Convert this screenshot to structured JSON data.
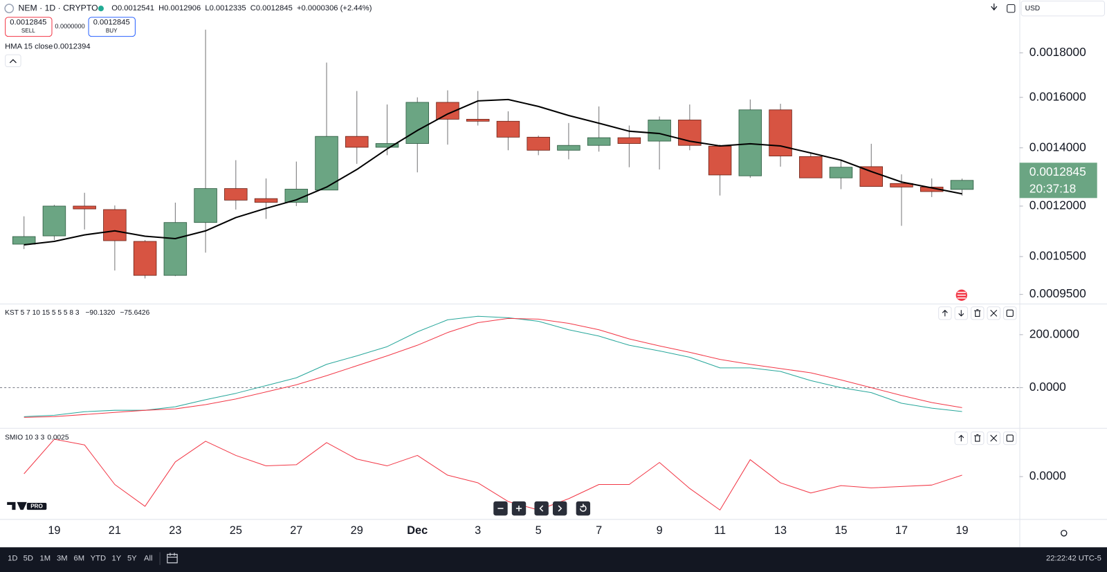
{
  "header": {
    "symbol": "NEM · 1D · CRYPTO",
    "ohlc": [
      "O0.0012541",
      "H0.0012906",
      "L0.0012335",
      "C0.0012845",
      "+0.0000306 (+2.44%)"
    ],
    "sell": {
      "price": "0.0012845",
      "label": "SELL"
    },
    "spread": "0.0000000",
    "buy": {
      "price": "0.0012845",
      "label": "BUY"
    },
    "currency": "USD",
    "badge": "PRO"
  },
  "toolbar": {
    "ranges": [
      "1D",
      "5D",
      "1M",
      "3M",
      "6M",
      "YTD",
      "1Y",
      "5Y",
      "All"
    ],
    "clock": "22:22:42 UTC-5"
  },
  "chart_data": [
    {
      "type": "candlestick",
      "log": true,
      "categories": [
        null,
        "19",
        null,
        "21",
        null,
        "23",
        null,
        "25",
        null,
        "27",
        null,
        "29",
        null,
        "Dec",
        null,
        "3",
        null,
        "5",
        null,
        "7",
        null,
        "9",
        null,
        "11",
        null,
        "13",
        null,
        "15",
        null,
        "17",
        null,
        "19"
      ],
      "open": [
        0.001085,
        0.001109,
        0.0012,
        0.001189,
        0.001093,
        0.000999,
        0.001149,
        0.001257,
        0.001224,
        0.001212,
        0.001252,
        0.001443,
        0.001402,
        0.001416,
        0.001579,
        0.00151,
        0.001502,
        0.00144,
        0.001391,
        0.001409,
        0.001438,
        0.001425,
        0.001507,
        0.001406,
        0.0013,
        0.001548,
        0.001368,
        0.001293,
        0.001332,
        0.001274,
        0.001262,
        0.0012541
      ],
      "high": [
        0.001168,
        0.001204,
        0.001243,
        0.001202,
        0.001097,
        0.001211,
        0.001914,
        0.001355,
        0.001291,
        0.00135,
        0.001754,
        0.001627,
        0.00157,
        0.0016,
        0.00163,
        0.001627,
        0.001542,
        0.001446,
        0.001495,
        0.001562,
        0.001485,
        0.001521,
        0.00157,
        0.001412,
        0.001591,
        0.001573,
        0.001383,
        0.001358,
        0.001415,
        0.001305,
        0.001291,
        0.0012906
      ],
      "low": [
        0.001071,
        0.001097,
        0.001128,
        0.001012,
        0.000991,
        0.000997,
        0.001061,
        0.001189,
        0.00116,
        0.0012,
        0.001252,
        0.001342,
        0.001373,
        0.001312,
        0.001412,
        0.001485,
        0.001391,
        0.001373,
        0.001358,
        0.001386,
        0.00133,
        0.001322,
        0.001391,
        0.001234,
        0.001293,
        0.001332,
        0.001293,
        0.001255,
        0.001264,
        0.001139,
        0.001229,
        0.0012335
      ],
      "close": [
        0.001107,
        0.0012,
        0.001191,
        0.001095,
        0.000999,
        0.001149,
        0.001257,
        0.001219,
        0.001212,
        0.001255,
        0.001443,
        0.001402,
        0.001416,
        0.001579,
        0.00151,
        0.001502,
        0.00144,
        0.001391,
        0.001409,
        0.001438,
        0.001416,
        0.001507,
        0.001409,
        0.001303,
        0.001548,
        0.00137,
        0.001293,
        0.00133,
        0.001264,
        0.001262,
        0.001247,
        0.0012845
      ],
      "up_color": "#6ba583",
      "down_color": "#d75442",
      "wick_color": "#737375",
      "ylim": [
        0.000927,
        0.00207
      ],
      "yticks": [
        {
          "value": 0.0018,
          "label": "0.0018000"
        },
        {
          "value": 0.0016,
          "label": "0.0016000"
        },
        {
          "value": 0.0014,
          "label": "0.0014000"
        },
        {
          "value": 0.0012,
          "label": "0.0012000"
        },
        {
          "value": 0.00105,
          "label": "0.0010500"
        },
        {
          "value": 0.00095,
          "label": "0.0009500"
        }
      ],
      "series": [
        {
          "name": "HMA 15 close",
          "color": "#000000",
          "value_label": "0.0012394",
          "values": [
            0.001083,
            0.001093,
            0.001112,
            0.001124,
            0.001108,
            0.001101,
            0.001124,
            0.001164,
            0.001193,
            0.00122,
            0.001262,
            0.001322,
            0.001396,
            0.001466,
            0.001531,
            0.001585,
            0.001591,
            0.001562,
            0.001525,
            0.001494,
            0.001463,
            0.001454,
            0.001425,
            0.001407,
            0.001415,
            0.001407,
            0.001381,
            0.001355,
            0.001315,
            0.001279,
            0.001259,
            0.0012394
          ]
        }
      ],
      "price_tag": {
        "value_label": "0.0012845",
        "countdown": "20:37:18"
      }
    },
    {
      "type": "line",
      "title": "KST 5 7 10 15 5 5 5 8 3",
      "zero_line": true,
      "ylim": [
        -152,
        317
      ],
      "yticks": [
        {
          "value": 200,
          "label": "200.0000"
        },
        {
          "value": 0,
          "label": "0.0000"
        }
      ],
      "series": [
        {
          "color": "#26a69a",
          "value_label": "−90.1320",
          "values": [
            -109.3,
            -104,
            -90.7,
            -85.3,
            -85.3,
            -72,
            -45.3,
            -21.3,
            8,
            37.3,
            88,
            120,
            154.7,
            210.7,
            256,
            269.3,
            264,
            250.7,
            218.7,
            194.7,
            160,
            138.7,
            114.7,
            74.7,
            74.7,
            61.3,
            26.7,
            0,
            -18.7,
            -58.7,
            -77.3,
            -90.132
          ]
        },
        {
          "color": "#f23645",
          "value_label": "−75.6426",
          "values": [
            -112,
            -109.3,
            -101.3,
            -93.3,
            -85.3,
            -80,
            -64,
            -42.7,
            -16,
            10.7,
            45.3,
            82.7,
            120,
            160,
            208,
            245.3,
            261.3,
            258.7,
            242.7,
            218.7,
            184,
            157.3,
            133.3,
            106.7,
            88,
            72,
            56,
            29.3,
            0,
            -29.3,
            -56,
            -75.6426
          ]
        }
      ]
    },
    {
      "type": "line",
      "title": "SMIO 10 3 3",
      "ylim": [
        -0.075,
        0.086
      ],
      "yticks": [
        {
          "value": 0,
          "label": "0.0000"
        }
      ],
      "series": [
        {
          "color": "#f23645",
          "value_label": "0.0025",
          "values": [
            0.005,
            0.066,
            0.056,
            -0.014,
            -0.0525,
            0.026,
            0.0625,
            0.0375,
            0.019,
            0.021,
            0.06,
            0.031,
            0.019,
            0.0375,
            0.0025,
            -0.011,
            -0.044,
            -0.059,
            -0.039,
            -0.014,
            -0.014,
            0.025,
            -0.021,
            -0.059,
            0.03,
            -0.011,
            -0.029,
            -0.016,
            -0.02,
            -0.0175,
            -0.015,
            0.0025
          ]
        }
      ]
    }
  ]
}
